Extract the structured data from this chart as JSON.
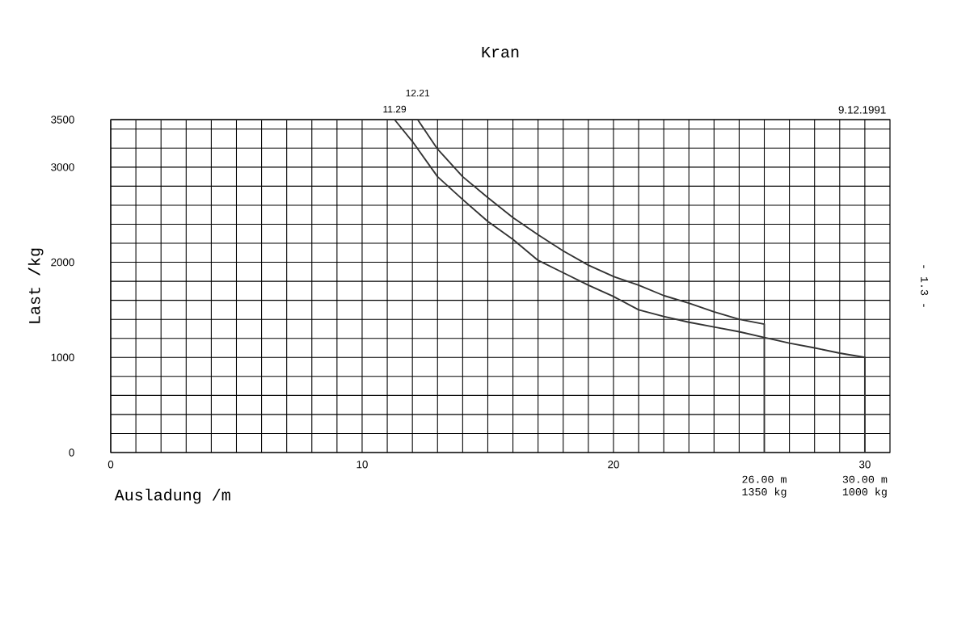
{
  "chart_data": {
    "type": "line",
    "title": "Kran",
    "xlabel": "Ausladung /m",
    "ylabel": "Last /kg",
    "xlim": [
      0,
      31
    ],
    "ylim": [
      0,
      3500
    ],
    "xticks": [
      0,
      {
        "value": 1,
        "label": null
      },
      {
        "value": 2,
        "label": null
      },
      {
        "value": 3,
        "label": null
      },
      {
        "value": 4,
        "label": null
      },
      {
        "value": 5,
        "label": null
      },
      {
        "value": 6,
        "label": null
      },
      {
        "value": 7,
        "label": null
      },
      {
        "value": 8,
        "label": null
      },
      {
        "value": 9,
        "label": null
      },
      10,
      {
        "value": 11,
        "label": null
      },
      {
        "value": 12,
        "label": null
      },
      {
        "value": 13,
        "label": null
      },
      {
        "value": 14,
        "label": null
      },
      {
        "value": 15,
        "label": null
      },
      {
        "value": 16,
        "label": null
      },
      {
        "value": 17,
        "label": null
      },
      {
        "value": 18,
        "label": null
      },
      {
        "value": 19,
        "label": null
      },
      20,
      {
        "value": 21,
        "label": null
      },
      {
        "value": 22,
        "label": null
      },
      {
        "value": 23,
        "label": null
      },
      {
        "value": 24,
        "label": null
      },
      {
        "value": 25,
        "label": null
      },
      {
        "value": 26,
        "label": null
      },
      {
        "value": 27,
        "label": null
      },
      {
        "value": 28,
        "label": null
      },
      {
        "value": 29,
        "label": null
      },
      30
    ],
    "yticks": [
      0,
      {
        "value": 200,
        "label": null
      },
      {
        "value": 400,
        "label": null
      },
      {
        "value": 600,
        "label": null
      },
      {
        "value": 800,
        "label": null
      },
      1000,
      {
        "value": 1200,
        "label": null
      },
      {
        "value": 1400,
        "label": null
      },
      {
        "value": 1600,
        "label": null
      },
      {
        "value": 1800,
        "label": null
      },
      2000,
      {
        "value": 2200,
        "label": null
      },
      {
        "value": 2400,
        "label": null
      },
      {
        "value": 2600,
        "label": null
      },
      {
        "value": 2800,
        "label": null
      },
      3000,
      {
        "value": 3200,
        "label": null
      },
      {
        "value": 3400,
        "label": null
      },
      3500
    ],
    "grid": true,
    "series": [
      {
        "color": "#333333",
        "x": [
          0,
          11.29,
          12,
          13,
          14,
          15,
          16,
          17,
          18,
          19,
          20,
          21,
          22,
          23,
          24,
          25,
          26,
          27,
          28,
          29,
          30,
          30
        ],
        "values": [
          3500,
          3500,
          3270,
          2900,
          2660,
          2430,
          2240,
          2020,
          1890,
          1760,
          1640,
          1500,
          1430,
          1370,
          1320,
          1270,
          1210,
          1150,
          1100,
          1045,
          1000,
          0
        ]
      },
      {
        "color": "#333333",
        "x": [
          0,
          12.21,
          13,
          14,
          15,
          16,
          17,
          18,
          19,
          20,
          21,
          22,
          23,
          24,
          25,
          26,
          26
        ],
        "values": [
          3500,
          3500,
          3190,
          2900,
          2680,
          2470,
          2290,
          2120,
          1970,
          1850,
          1760,
          1650,
          1570,
          1480,
          1400,
          1350,
          0
        ]
      }
    ],
    "annotations": [
      {
        "text": "11.29",
        "x": 11.29,
        "y": 3500
      },
      {
        "text": "12.21",
        "x": 12.21,
        "y": 3500
      },
      "26.00 m",
      "1350 kg",
      "30.00 m",
      "1000 kg",
      "9.12.1991",
      "- 1.3 -"
    ]
  }
}
